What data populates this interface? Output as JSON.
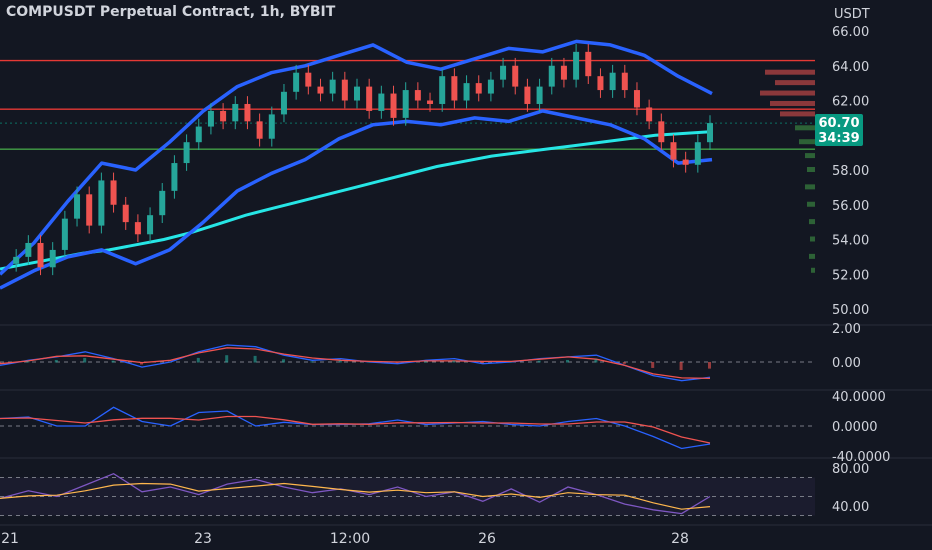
{
  "title": "COMPUSDT Perpetual Contract, 1h, BYBIT",
  "currency": "USDT",
  "colors": {
    "background": "#131722",
    "bull": "#26a69a",
    "bear": "#ef5350",
    "bollinger": "#2962ff",
    "ma200": "#26e6e6",
    "price_badge": "#089981",
    "resistance": "#e53935",
    "support": "#43a047"
  },
  "chart_data": {
    "type": "candlestick",
    "symbol": "COMPUSDT",
    "timeframe": "1h",
    "exchange": "BYBIT",
    "price_axis": {
      "ticks": [
        "66.00",
        "64.00",
        "62.00",
        "58.00",
        "56.00",
        "54.00",
        "52.00",
        "50.00"
      ],
      "range": [
        49.0,
        66.8
      ]
    },
    "last_price": "60.70",
    "countdown": "34:39",
    "time_labels": [
      "21",
      "23",
      "12:00",
      "26",
      "28"
    ],
    "horizontal_levels": [
      {
        "price": 64.3,
        "color": "#e53935"
      },
      {
        "price": 61.5,
        "color": "#e53935"
      },
      {
        "price": 59.2,
        "color": "#43a047"
      }
    ],
    "price_series": [
      52.6,
      53.0,
      53.8,
      52.4,
      53.4,
      55.2,
      56.6,
      54.8,
      57.4,
      56.0,
      55.0,
      54.3,
      55.4,
      56.8,
      58.4,
      59.6,
      60.5,
      61.4,
      60.8,
      61.8,
      60.8,
      59.8,
      61.2,
      62.5,
      63.6,
      62.8,
      62.4,
      63.2,
      62.0,
      62.8,
      61.4,
      62.4,
      61.0,
      62.6,
      62.0,
      61.8,
      63.4,
      62.0,
      63.0,
      62.4,
      63.2,
      64.0,
      62.8,
      61.8,
      62.8,
      64.0,
      63.2,
      64.8,
      63.4,
      62.6,
      63.6,
      62.6,
      61.6,
      60.8,
      59.6,
      58.6,
      58.3,
      59.6,
      60.7
    ],
    "ma200": [
      52.3,
      52.6,
      52.9,
      53.2,
      53.4,
      53.7,
      54.0,
      54.4,
      54.9,
      55.4,
      55.8,
      56.2,
      56.6,
      57.0,
      57.4,
      57.8,
      58.2,
      58.5,
      58.8,
      59.0,
      59.2,
      59.4,
      59.6,
      59.8,
      60.0,
      60.1,
      60.2
    ],
    "bollinger_upper": [
      52.0,
      53.8,
      56.2,
      58.4,
      58.0,
      59.6,
      61.4,
      62.8,
      63.6,
      64.0,
      64.6,
      65.2,
      64.2,
      63.8,
      64.4,
      65.0,
      64.8,
      65.4,
      65.2,
      64.6,
      63.4,
      62.4
    ],
    "bollinger_lower": [
      51.2,
      52.2,
      53.0,
      53.4,
      52.6,
      53.4,
      55.0,
      56.8,
      57.8,
      58.6,
      59.8,
      60.6,
      60.8,
      60.6,
      61.0,
      60.8,
      61.4,
      61.0,
      60.6,
      59.8,
      58.4,
      58.6
    ],
    "macd_axis": {
      "ticks": [
        "2.00",
        "0.00"
      ]
    },
    "osc_axis": {
      "ticks": [
        "40.0000",
        "0.0000",
        "-40.0000"
      ]
    },
    "rsi_axis": {
      "ticks": [
        "80.00",
        "40.00"
      ]
    },
    "macd": [
      -0.2,
      0.1,
      0.3,
      0.6,
      0.2,
      -0.3,
      0.0,
      0.6,
      1.0,
      0.9,
      0.4,
      0.1,
      0.2,
      0.0,
      -0.1,
      0.1,
      0.2,
      -0.1,
      0.0,
      0.2,
      0.3,
      0.4,
      -0.2,
      -0.8,
      -1.1,
      -0.9
    ],
    "osc": [
      10,
      12,
      0,
      0,
      25,
      6,
      0,
      18,
      20,
      0,
      5,
      2,
      2,
      3,
      8,
      2,
      4,
      6,
      2,
      0,
      6,
      10,
      0,
      -14,
      -30,
      -24
    ],
    "rsi": [
      48,
      56,
      50,
      62,
      74,
      55,
      60,
      52,
      63,
      68,
      60,
      54,
      58,
      52,
      60,
      50,
      55,
      45,
      58,
      44,
      60,
      52,
      42,
      36,
      32,
      50
    ]
  }
}
